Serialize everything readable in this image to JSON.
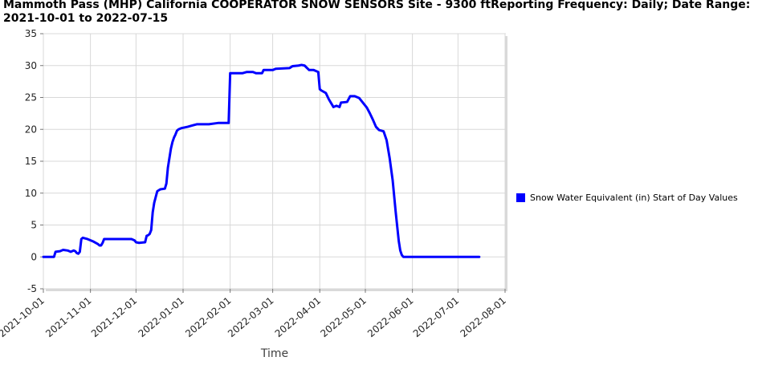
{
  "chart_data": {
    "type": "line",
    "title": "Mammoth Pass (MHP) California COOPERATOR SNOW SENSORS Site - 9300 ftReporting Frequency: Daily; Date Range: 2021-10-01 to 2022-07-15",
    "xlabel": "Time",
    "ylabel": "",
    "xlim": [
      "2021-10-01",
      "2022-08-01"
    ],
    "ylim": [
      -5,
      35
    ],
    "yticks": [
      -5,
      0,
      5,
      10,
      15,
      20,
      25,
      30,
      35
    ],
    "xticks": [
      "2021-10-01",
      "2021-11-01",
      "2021-12-01",
      "2022-01-01",
      "2022-02-01",
      "2022-03-01",
      "2022-04-01",
      "2022-05-01",
      "2022-06-01",
      "2022-07-01",
      "2022-08-01"
    ],
    "grid": true,
    "legend_position": "right",
    "series": [
      {
        "name": "Snow Water Equivalent (in) Start of Day Values",
        "color": "#0000ff",
        "points": [
          [
            "2021-10-01",
            0.0
          ],
          [
            "2021-10-08",
            0.0
          ],
          [
            "2021-10-09",
            0.8
          ],
          [
            "2021-10-12",
            0.9
          ],
          [
            "2021-10-14",
            1.1
          ],
          [
            "2021-10-17",
            1.0
          ],
          [
            "2021-10-19",
            0.8
          ],
          [
            "2021-10-21",
            1.0
          ],
          [
            "2021-10-22",
            0.9
          ],
          [
            "2021-10-23",
            0.6
          ],
          [
            "2021-10-24",
            0.5
          ],
          [
            "2021-10-25",
            0.8
          ],
          [
            "2021-10-26",
            2.8
          ],
          [
            "2021-10-27",
            3.0
          ],
          [
            "2021-10-30",
            2.8
          ],
          [
            "2021-11-03",
            2.4
          ],
          [
            "2021-11-06",
            2.0
          ],
          [
            "2021-11-07",
            1.8
          ],
          [
            "2021-11-08",
            1.8
          ],
          [
            "2021-11-09",
            2.2
          ],
          [
            "2021-11-10",
            2.8
          ],
          [
            "2021-11-28",
            2.8
          ],
          [
            "2021-11-30",
            2.6
          ],
          [
            "2021-12-01",
            2.3
          ],
          [
            "2021-12-03",
            2.2
          ],
          [
            "2021-12-07",
            2.3
          ],
          [
            "2021-12-08",
            3.3
          ],
          [
            "2021-12-09",
            3.4
          ],
          [
            "2021-12-10",
            3.6
          ],
          [
            "2021-12-11",
            4.2
          ],
          [
            "2021-12-12",
            7.0
          ],
          [
            "2021-12-13",
            8.5
          ],
          [
            "2021-12-14",
            9.4
          ],
          [
            "2021-12-15",
            10.3
          ],
          [
            "2021-12-17",
            10.6
          ],
          [
            "2021-12-20",
            10.7
          ],
          [
            "2021-12-21",
            11.5
          ],
          [
            "2021-12-22",
            14.0
          ],
          [
            "2021-12-23",
            15.5
          ],
          [
            "2021-12-24",
            17.0
          ],
          [
            "2021-12-25",
            18.0
          ],
          [
            "2021-12-26",
            18.7
          ],
          [
            "2021-12-27",
            19.2
          ],
          [
            "2021-12-28",
            19.8
          ],
          [
            "2021-12-29",
            20.0
          ],
          [
            "2021-12-31",
            20.2
          ],
          [
            "2022-01-04",
            20.4
          ],
          [
            "2022-01-07",
            20.6
          ],
          [
            "2022-01-10",
            20.8
          ],
          [
            "2022-01-18",
            20.8
          ],
          [
            "2022-01-24",
            21.0
          ],
          [
            "2022-01-31",
            21.0
          ],
          [
            "2022-02-01",
            28.8
          ],
          [
            "2022-02-09",
            28.8
          ],
          [
            "2022-02-12",
            29.0
          ],
          [
            "2022-02-16",
            29.0
          ],
          [
            "2022-02-18",
            28.8
          ],
          [
            "2022-02-22",
            28.8
          ],
          [
            "2022-02-23",
            29.3
          ],
          [
            "2022-03-01",
            29.3
          ],
          [
            "2022-03-03",
            29.5
          ],
          [
            "2022-03-12",
            29.6
          ],
          [
            "2022-03-14",
            29.9
          ],
          [
            "2022-03-18",
            30.0
          ],
          [
            "2022-03-20",
            30.1
          ],
          [
            "2022-03-22",
            30.0
          ],
          [
            "2022-03-25",
            29.3
          ],
          [
            "2022-03-28",
            29.3
          ],
          [
            "2022-03-29",
            29.2
          ],
          [
            "2022-03-31",
            29.0
          ],
          [
            "2022-04-01",
            26.3
          ],
          [
            "2022-04-02",
            26.1
          ],
          [
            "2022-04-05",
            25.7
          ],
          [
            "2022-04-07",
            24.7
          ],
          [
            "2022-04-10",
            23.5
          ],
          [
            "2022-04-12",
            23.7
          ],
          [
            "2022-04-14",
            23.5
          ],
          [
            "2022-04-15",
            24.2
          ],
          [
            "2022-04-19",
            24.3
          ],
          [
            "2022-04-21",
            25.2
          ],
          [
            "2022-04-24",
            25.2
          ],
          [
            "2022-04-27",
            24.9
          ],
          [
            "2022-04-29",
            24.3
          ],
          [
            "2022-05-02",
            23.4
          ],
          [
            "2022-05-04",
            22.5
          ],
          [
            "2022-05-06",
            21.5
          ],
          [
            "2022-05-08",
            20.4
          ],
          [
            "2022-05-10",
            19.9
          ],
          [
            "2022-05-13",
            19.7
          ],
          [
            "2022-05-15",
            18.3
          ],
          [
            "2022-05-17",
            15.5
          ],
          [
            "2022-05-19",
            12.0
          ],
          [
            "2022-05-21",
            7.0
          ],
          [
            "2022-05-23",
            2.5
          ],
          [
            "2022-05-24",
            1.0
          ],
          [
            "2022-05-25",
            0.3
          ],
          [
            "2022-05-26",
            0.0
          ],
          [
            "2022-07-15",
            0.0
          ]
        ]
      }
    ]
  }
}
